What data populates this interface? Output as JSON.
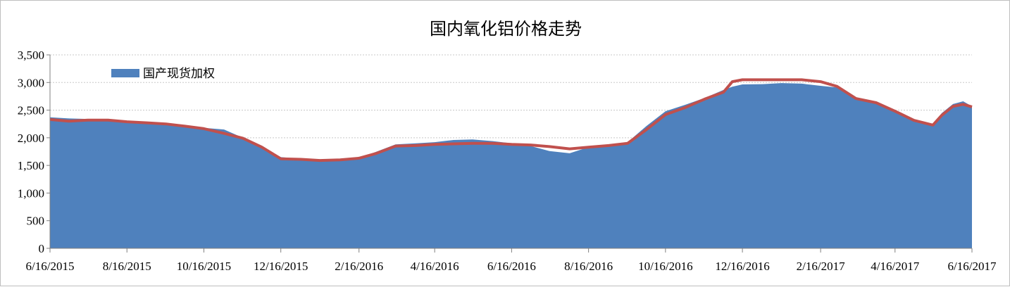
{
  "chart_data": {
    "type": "area",
    "title": "国内氧化铝价格走势",
    "xlabel": "",
    "ylabel": "",
    "ylim": [
      0,
      3500
    ],
    "y_ticks": [
      "0",
      "500",
      "1,000",
      "1,500",
      "2,000",
      "2,500",
      "3,000",
      "3,500"
    ],
    "y_tick_values": [
      0,
      500,
      1000,
      1500,
      2000,
      2500,
      3000,
      3500
    ],
    "xlim": [
      "2015-06-16",
      "2017-06-16"
    ],
    "x_ticks": [
      "6/16/2015",
      "8/16/2015",
      "10/16/2015",
      "12/16/2015",
      "2/16/2016",
      "4/16/2016",
      "6/16/2016",
      "8/16/2016",
      "10/16/2016",
      "12/16/2016",
      "2/16/2017",
      "4/16/2017",
      "6/16/2017"
    ],
    "grid": "horizontal dotted",
    "legend_position": "top-left",
    "x": [
      "2015-06-16",
      "2015-07-01",
      "2015-07-16",
      "2015-08-01",
      "2015-08-16",
      "2015-09-01",
      "2015-09-16",
      "2015-10-01",
      "2015-10-16",
      "2015-11-01",
      "2015-11-16",
      "2015-12-01",
      "2015-12-16",
      "2016-01-01",
      "2016-01-16",
      "2016-02-01",
      "2016-02-16",
      "2016-03-01",
      "2016-03-16",
      "2016-04-01",
      "2016-04-16",
      "2016-05-01",
      "2016-05-16",
      "2016-06-01",
      "2016-06-16",
      "2016-07-01",
      "2016-07-16",
      "2016-08-01",
      "2016-08-16",
      "2016-09-01",
      "2016-09-16",
      "2016-10-01",
      "2016-10-16",
      "2016-11-01",
      "2016-11-16",
      "2016-12-01",
      "2016-12-08",
      "2016-12-16",
      "2017-01-01",
      "2017-01-16",
      "2017-02-01",
      "2017-02-16",
      "2017-03-01",
      "2017-03-16",
      "2017-04-01",
      "2017-04-16",
      "2017-05-01",
      "2017-05-16",
      "2017-05-23",
      "2017-06-01",
      "2017-06-09",
      "2017-06-16"
    ],
    "series": [
      {
        "name": "国产现货加权",
        "kind": "area",
        "color": "#4f81bd",
        "values": [
          2370,
          2350,
          2340,
          2330,
          2300,
          2280,
          2260,
          2220,
          2180,
          2150,
          2000,
          1850,
          1650,
          1620,
          1600,
          1610,
          1630,
          1750,
          1880,
          1900,
          1920,
          1960,
          1970,
          1940,
          1900,
          1850,
          1760,
          1720,
          1830,
          1870,
          1920,
          2215,
          2480,
          2600,
          2720,
          2865,
          2925,
          2965,
          2970,
          2990,
          2980,
          2940,
          2910,
          2735,
          2635,
          2480,
          2335,
          2230,
          2445,
          2610,
          2660,
          2570
        ]
      },
      {
        "kind": "line",
        "color": "#c0504d",
        "values": [
          2330,
          2300,
          2320,
          2320,
          2290,
          2270,
          2250,
          2210,
          2165,
          2080,
          1990,
          1830,
          1620,
          1610,
          1590,
          1600,
          1630,
          1720,
          1850,
          1860,
          1880,
          1890,
          1900,
          1900,
          1880,
          1870,
          1840,
          1800,
          1830,
          1860,
          1900,
          2150,
          2420,
          2550,
          2700,
          2825,
          3015,
          3050,
          3050,
          3050,
          3050,
          3015,
          2930,
          2710,
          2635,
          2480,
          2315,
          2230,
          2405,
          2570,
          2605,
          2560
        ]
      }
    ]
  }
}
